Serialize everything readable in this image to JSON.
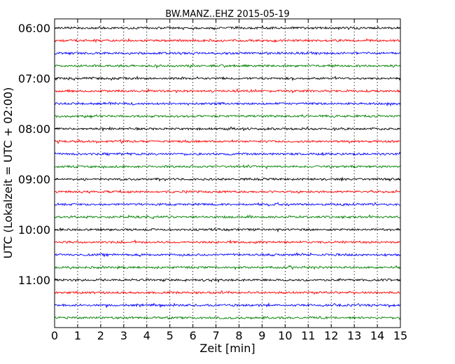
{
  "chart_data": {
    "type": "line",
    "title": "BW.MANZ..EHZ 2015-05-19",
    "xlabel": "Zeit  [min]",
    "ylabel": "UTC (Lokalzeit = UTC + 02:00)",
    "xlim": [
      0,
      15
    ],
    "x_ticks": [
      "0",
      "1",
      "2",
      "3",
      "4",
      "5",
      "6",
      "7",
      "8",
      "9",
      "10",
      "11",
      "12",
      "13",
      "14",
      "15"
    ],
    "y_ticks": [
      "06:00",
      "07:00",
      "08:00",
      "09:00",
      "10:00",
      "11:00"
    ],
    "grid": "vertical-dotted",
    "trace_start_hour": 6,
    "trace_interval_minutes": 15,
    "trace_count": 24,
    "colors": [
      "#000000",
      "#ff0000",
      "#0000ff",
      "#008000"
    ]
  }
}
